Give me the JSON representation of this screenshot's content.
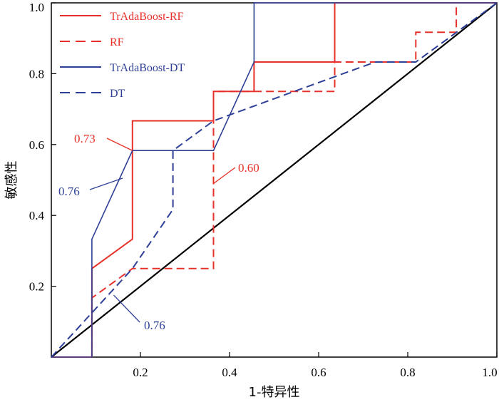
{
  "chart_data": {
    "type": "line",
    "title": "",
    "xlabel": "1-特异性",
    "ylabel": "敏感性",
    "xlim": [
      0,
      1
    ],
    "ylim": [
      0,
      1
    ],
    "x_ticks": [
      {
        "value": 0.2,
        "label": "0.2"
      },
      {
        "value": 0.4,
        "label": "0.4"
      },
      {
        "value": 0.6,
        "label": "0.6"
      },
      {
        "value": 0.8,
        "label": "0.8"
      },
      {
        "value": 1.0,
        "label": "1.0"
      }
    ],
    "y_ticks": [
      {
        "value": 0.2,
        "label": "0.2"
      },
      {
        "value": 0.4,
        "label": "0.4"
      },
      {
        "value": 0.6,
        "label": "0.6"
      },
      {
        "value": 0.8,
        "label": "0.8"
      },
      {
        "value": 1.0,
        "label": "1.0"
      }
    ],
    "grid": false,
    "legend_position": "top-left",
    "series": [
      {
        "name": "TrAdaBoost-RF",
        "color": "#e8302a",
        "dash": "solid",
        "points": [
          [
            0,
            0
          ],
          [
            0.091,
            0
          ],
          [
            0.091,
            0.25
          ],
          [
            0.182,
            0.333
          ],
          [
            0.182,
            0.667
          ],
          [
            0.364,
            0.667
          ],
          [
            0.364,
            0.75
          ],
          [
            0.455,
            0.75
          ],
          [
            0.455,
            0.833
          ],
          [
            0.636,
            0.833
          ],
          [
            0.636,
            1.0
          ],
          [
            1.0,
            1.0
          ]
        ]
      },
      {
        "name": "RF",
        "color": "#e8302a",
        "dash": "dashed",
        "points": [
          [
            0,
            0
          ],
          [
            0.091,
            0
          ],
          [
            0.091,
            0.167
          ],
          [
            0.182,
            0.25
          ],
          [
            0.364,
            0.25
          ],
          [
            0.364,
            0.75
          ],
          [
            0.636,
            0.75
          ],
          [
            0.636,
            0.833
          ],
          [
            0.818,
            0.833
          ],
          [
            0.818,
            0.917
          ],
          [
            0.909,
            0.917
          ],
          [
            0.909,
            1.0
          ],
          [
            1.0,
            1.0
          ]
        ]
      },
      {
        "name": "TrAdaBoost-DT",
        "color": "#2e3f96",
        "dash": "solid",
        "points": [
          [
            0,
            0
          ],
          [
            0.091,
            0
          ],
          [
            0.091,
            0.333
          ],
          [
            0.182,
            0.583
          ],
          [
            0.364,
            0.583
          ],
          [
            0.455,
            0.833
          ],
          [
            0.455,
            1.0
          ],
          [
            1.0,
            1.0
          ]
        ]
      },
      {
        "name": "DT",
        "color": "#2e3f96",
        "dash": "dashed",
        "points": [
          [
            0,
            0
          ],
          [
            0.182,
            0.25
          ],
          [
            0.273,
            0.417
          ],
          [
            0.273,
            0.583
          ],
          [
            0.364,
            0.667
          ],
          [
            0.545,
            0.75
          ],
          [
            0.727,
            0.833
          ],
          [
            0.818,
            0.833
          ],
          [
            1.0,
            1.0
          ]
        ]
      }
    ],
    "reference_line": {
      "color": "#000000",
      "points": [
        [
          0,
          0
        ],
        [
          1,
          1
        ]
      ]
    },
    "annotations": [
      {
        "text": "0.73",
        "color": "#e8302a",
        "point": [
          0.182,
          0.583
        ]
      },
      {
        "text": "0.60",
        "color": "#e8302a",
        "point": [
          0.364,
          0.49
        ]
      },
      {
        "text": "0.76",
        "color": "#2e3f96",
        "point": [
          0.16,
          0.505
        ]
      },
      {
        "text": "0.76",
        "color": "#2e3f96",
        "point": [
          0.14,
          0.175
        ]
      }
    ]
  }
}
